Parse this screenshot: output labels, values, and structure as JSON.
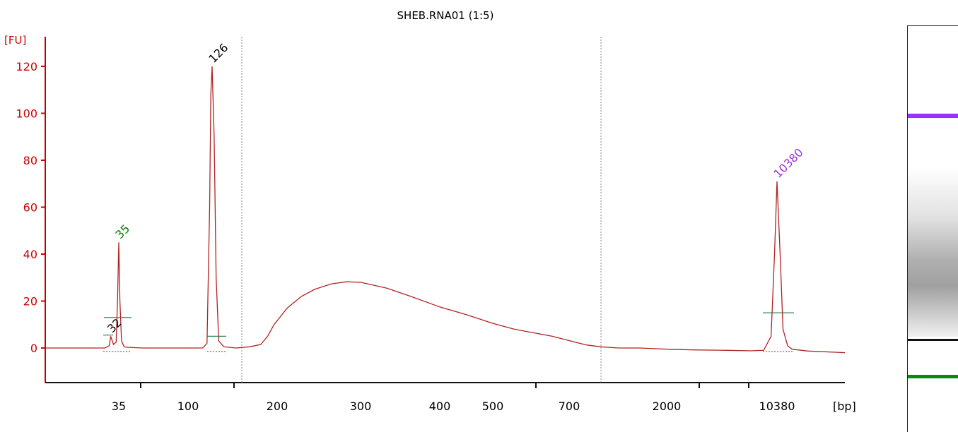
{
  "chart_data": {
    "type": "line",
    "title": "SHEB.RNA01 (1:5)",
    "ylabel": "[FU]",
    "xlabel": "[bp]",
    "ylim": [
      -14,
      130
    ],
    "y_ticks": [
      0,
      20,
      40,
      60,
      80,
      100,
      120
    ],
    "x_tick_labels": [
      "35",
      "100",
      "200",
      "300",
      "400",
      "500",
      "700",
      "2000",
      "10380"
    ],
    "grid": false,
    "peak_labels": [
      {
        "label": "35",
        "x_bp": 35,
        "value": 45,
        "color": "#008000",
        "kind": "lower-marker"
      },
      {
        "label": "32",
        "x_bp": 32,
        "value": 5,
        "color": "#000000",
        "kind": "peak"
      },
      {
        "label": "126",
        "x_bp": 126,
        "value": 120,
        "color": "#000000",
        "kind": "peak"
      },
      {
        "label": "10380",
        "x_bp": 10380,
        "value": 71,
        "color": "#9933dd",
        "kind": "upper-marker"
      }
    ],
    "region_markers_bp": [
      150,
      1000
    ],
    "series": [
      {
        "color": "#b22222",
        "points": [
          [
            15,
            0
          ],
          [
            25,
            0
          ],
          [
            30,
            0
          ],
          [
            31.5,
            1
          ],
          [
            32,
            5
          ],
          [
            33,
            1.5
          ],
          [
            34,
            2.5
          ],
          [
            34.5,
            20
          ],
          [
            35,
            45
          ],
          [
            35.6,
            20
          ],
          [
            36.5,
            3
          ],
          [
            38,
            0.5
          ],
          [
            40,
            0.3
          ],
          [
            50,
            0
          ],
          [
            70,
            0
          ],
          [
            95,
            0
          ],
          [
            115,
            0
          ],
          [
            120,
            2
          ],
          [
            123,
            60
          ],
          [
            124.5,
            108
          ],
          [
            126,
            120
          ],
          [
            127.5,
            90
          ],
          [
            129,
            30
          ],
          [
            131,
            3
          ],
          [
            135,
            0.5
          ],
          [
            145,
            0
          ],
          [
            160,
            0.5
          ],
          [
            175,
            1.5
          ],
          [
            185,
            5
          ],
          [
            195,
            10
          ],
          [
            210,
            17
          ],
          [
            225,
            22
          ],
          [
            240,
            25
          ],
          [
            260,
            27.3
          ],
          [
            280,
            28.2
          ],
          [
            300,
            28
          ],
          [
            330,
            25.5
          ],
          [
            360,
            22
          ],
          [
            400,
            17.5
          ],
          [
            450,
            14
          ],
          [
            500,
            10.5
          ],
          [
            550,
            8
          ],
          [
            650,
            5
          ],
          [
            750,
            2.5
          ],
          [
            850,
            1.3
          ],
          [
            1000,
            0.5
          ],
          [
            1200,
            0
          ],
          [
            1500,
            0
          ],
          [
            1800,
            -0.3
          ],
          [
            2000,
            -0.5
          ],
          [
            3000,
            -0.8
          ],
          [
            5000,
            -1
          ],
          [
            7000,
            -1.2
          ],
          [
            8500,
            -1
          ],
          [
            9500,
            5
          ],
          [
            10000,
            40
          ],
          [
            10380,
            71
          ],
          [
            10700,
            40
          ],
          [
            11000,
            8
          ],
          [
            11500,
            1
          ],
          [
            12000,
            -0.5
          ],
          [
            14000,
            -1.3
          ],
          [
            20000,
            -2
          ]
        ]
      }
    ]
  }
}
